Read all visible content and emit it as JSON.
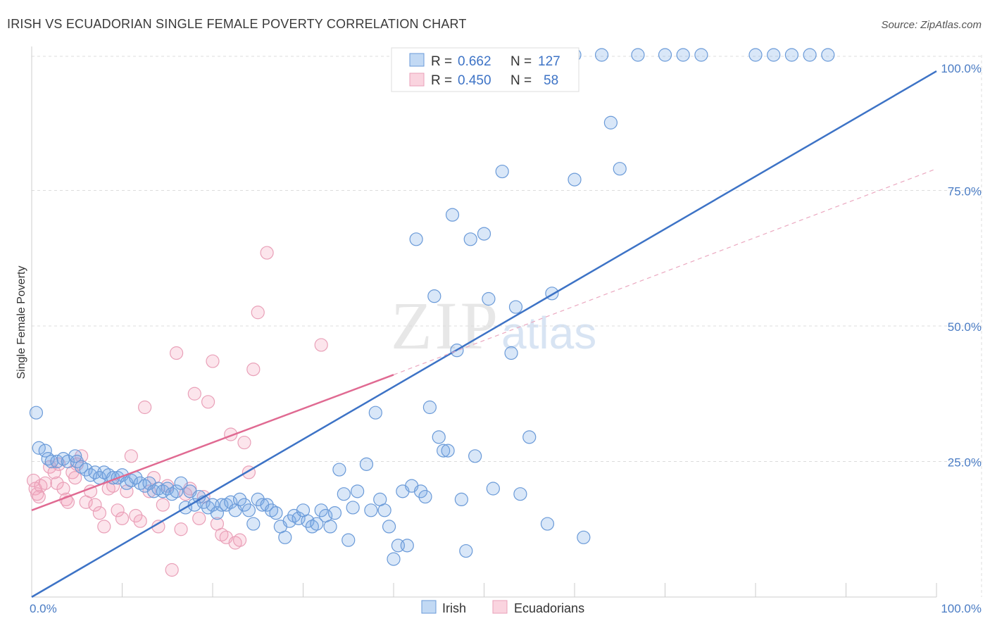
{
  "chart_data": {
    "type": "scatter",
    "title": "IRISH VS ECUADORIAN SINGLE FEMALE POVERTY CORRELATION CHART",
    "source": "Source: ZipAtlas.com",
    "ylabel": "Single Female Poverty",
    "xlim": [
      0,
      100
    ],
    "ylim": [
      0,
      100
    ],
    "x_tick_labels": [
      "0.0%",
      "100.0%"
    ],
    "y_tick_labels": [
      "25.0%",
      "50.0%",
      "75.0%",
      "100.0%"
    ],
    "y_tick_values": [
      25,
      50,
      75,
      100
    ],
    "grid": true,
    "legend_position": "top-center",
    "watermark": {
      "zip": "ZIP",
      "atlas": "atlas"
    },
    "legend": {
      "irish": {
        "r_label": "R =",
        "r_value": "0.662",
        "n_label": "N =",
        "n_value": "127"
      },
      "ecuadorians": {
        "r_label": "R =",
        "r_value": "0.450",
        "n_label": "N =",
        "n_value": "58"
      }
    },
    "colors": {
      "irish": "#6a9ad8",
      "irish_line": "#3d73c6",
      "ecuadorians": "#e9a0b8",
      "ecuadorians_line": "#e06a92"
    },
    "series": [
      {
        "name": "Irish",
        "trend": {
          "x": [
            0,
            100
          ],
          "y": [
            0,
            97
          ]
        },
        "points": [
          [
            0.5,
            34
          ],
          [
            0.8,
            27.5
          ],
          [
            1.5,
            27
          ],
          [
            1.8,
            25.5
          ],
          [
            2.2,
            25
          ],
          [
            2.8,
            25
          ],
          [
            3.5,
            25.5
          ],
          [
            4,
            25
          ],
          [
            4.8,
            26
          ],
          [
            5,
            25
          ],
          [
            5.5,
            24
          ],
          [
            6,
            23.5
          ],
          [
            6.5,
            22.5
          ],
          [
            7,
            23
          ],
          [
            7.5,
            22
          ],
          [
            8,
            23
          ],
          [
            8.5,
            22.5
          ],
          [
            9,
            22
          ],
          [
            9.5,
            22
          ],
          [
            10,
            22.5
          ],
          [
            10.5,
            21
          ],
          [
            11,
            21.5
          ],
          [
            11.5,
            22
          ],
          [
            12,
            21
          ],
          [
            12.5,
            20.5
          ],
          [
            13,
            21
          ],
          [
            13.5,
            19.5
          ],
          [
            14,
            20
          ],
          [
            14.5,
            19.5
          ],
          [
            15,
            20
          ],
          [
            15.5,
            19
          ],
          [
            16,
            19.5
          ],
          [
            16.5,
            21
          ],
          [
            17,
            16.5
          ],
          [
            17.5,
            19.5
          ],
          [
            18,
            17
          ],
          [
            18.5,
            18.5
          ],
          [
            19,
            17.5
          ],
          [
            19.5,
            16.5
          ],
          [
            20,
            17
          ],
          [
            20.5,
            15.5
          ],
          [
            21,
            17
          ],
          [
            21.5,
            17
          ],
          [
            22,
            17.5
          ],
          [
            22.5,
            16
          ],
          [
            23,
            18
          ],
          [
            23.5,
            17
          ],
          [
            24,
            16
          ],
          [
            24.5,
            13.5
          ],
          [
            25,
            18
          ],
          [
            25.5,
            17
          ],
          [
            26,
            17
          ],
          [
            26.5,
            16
          ],
          [
            27,
            15.5
          ],
          [
            27.5,
            13
          ],
          [
            28,
            11
          ],
          [
            28.5,
            14
          ],
          [
            29,
            15
          ],
          [
            29.5,
            14.5
          ],
          [
            30,
            16
          ],
          [
            30.5,
            14
          ],
          [
            31,
            13
          ],
          [
            31.5,
            13.5
          ],
          [
            32,
            16
          ],
          [
            32.5,
            15
          ],
          [
            33,
            13
          ],
          [
            33.5,
            15.5
          ],
          [
            34,
            23.5
          ],
          [
            34.5,
            19
          ],
          [
            35,
            10.5
          ],
          [
            35.5,
            16.5
          ],
          [
            36,
            19.5
          ],
          [
            37,
            24.5
          ],
          [
            37.5,
            16
          ],
          [
            38,
            34
          ],
          [
            38.5,
            18
          ],
          [
            39,
            16
          ],
          [
            39.5,
            13
          ],
          [
            40,
            7
          ],
          [
            40.5,
            9.5
          ],
          [
            41,
            19.5
          ],
          [
            41.5,
            9.5
          ],
          [
            42,
            20.5
          ],
          [
            42.5,
            66
          ],
          [
            43,
            19.5
          ],
          [
            43.5,
            18.5
          ],
          [
            44,
            35
          ],
          [
            44.5,
            55.5
          ],
          [
            45,
            29.5
          ],
          [
            45.5,
            27
          ],
          [
            46,
            27
          ],
          [
            46.5,
            70.5
          ],
          [
            47,
            45.5
          ],
          [
            47.5,
            18
          ],
          [
            48,
            8.5
          ],
          [
            48.5,
            66
          ],
          [
            49,
            26
          ],
          [
            50,
            67
          ],
          [
            50.5,
            55
          ],
          [
            51,
            20
          ],
          [
            52,
            78.5
          ],
          [
            53,
            45
          ],
          [
            53.5,
            53.5
          ],
          [
            54,
            19
          ],
          [
            55,
            29.5
          ],
          [
            57,
            13.5
          ],
          [
            57.5,
            56
          ],
          [
            60,
            77
          ],
          [
            61,
            11
          ],
          [
            63,
            100
          ],
          [
            64,
            87.5
          ],
          [
            65,
            79
          ],
          [
            67,
            100
          ],
          [
            70,
            100
          ],
          [
            72,
            100
          ],
          [
            74,
            100
          ],
          [
            80,
            100
          ],
          [
            82,
            100
          ],
          [
            84,
            100
          ],
          [
            86,
            100
          ],
          [
            88,
            100
          ],
          [
            44,
            100
          ],
          [
            46,
            100
          ],
          [
            48,
            100
          ],
          [
            50,
            96
          ],
          [
            52,
            100
          ],
          [
            54,
            100
          ],
          [
            56,
            100
          ],
          [
            60,
            100
          ]
        ]
      },
      {
        "name": "Ecuadorians",
        "trend": {
          "x": [
            0,
            40
          ],
          "y": [
            16,
            41
          ]
        },
        "trend_ext": {
          "x": [
            40,
            100
          ],
          "y": [
            41,
            79
          ]
        },
        "points": [
          [
            0.2,
            21.5
          ],
          [
            0.4,
            20
          ],
          [
            0.6,
            19
          ],
          [
            0.8,
            18.5
          ],
          [
            1,
            20.5
          ],
          [
            1.5,
            21
          ],
          [
            2,
            24
          ],
          [
            2.5,
            23
          ],
          [
            2.8,
            21
          ],
          [
            3,
            24.5
          ],
          [
            3.5,
            20
          ],
          [
            3.8,
            18
          ],
          [
            4,
            17.5
          ],
          [
            4.5,
            23
          ],
          [
            4.8,
            22
          ],
          [
            5,
            24.5
          ],
          [
            5.5,
            26
          ],
          [
            6,
            17.5
          ],
          [
            6.5,
            19.5
          ],
          [
            7,
            17
          ],
          [
            7.5,
            15.5
          ],
          [
            8,
            13
          ],
          [
            8.5,
            20
          ],
          [
            9,
            20.5
          ],
          [
            9.5,
            16
          ],
          [
            10,
            14.5
          ],
          [
            10.5,
            19.5
          ],
          [
            11,
            26
          ],
          [
            11.5,
            15
          ],
          [
            12,
            14
          ],
          [
            12.5,
            35
          ],
          [
            13,
            19.5
          ],
          [
            13.5,
            22
          ],
          [
            14,
            13
          ],
          [
            14.5,
            17
          ],
          [
            15,
            20.5
          ],
          [
            15.5,
            5
          ],
          [
            16,
            45
          ],
          [
            16.5,
            12.5
          ],
          [
            17,
            19
          ],
          [
            17.5,
            20
          ],
          [
            18,
            37.5
          ],
          [
            18.5,
            14.5
          ],
          [
            19,
            18.5
          ],
          [
            19.5,
            36
          ],
          [
            20,
            43.5
          ],
          [
            20.5,
            13.5
          ],
          [
            21,
            11.5
          ],
          [
            21.5,
            11
          ],
          [
            22,
            30
          ],
          [
            22.5,
            10
          ],
          [
            23,
            10.5
          ],
          [
            23.5,
            28.5
          ],
          [
            24,
            23
          ],
          [
            24.5,
            42
          ],
          [
            25,
            52.5
          ],
          [
            26,
            63.5
          ],
          [
            32,
            46.5
          ]
        ]
      }
    ]
  }
}
